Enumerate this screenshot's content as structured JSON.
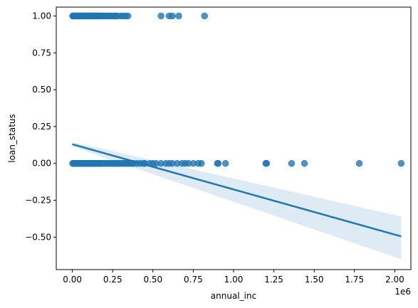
{
  "chart_data": {
    "type": "scatter",
    "xlabel": "annual_inc",
    "ylabel": "loan_status",
    "x_offset_label": "1e6",
    "x_tick_labels": [
      "0.00",
      "0.25",
      "0.50",
      "0.75",
      "1.00",
      "1.25",
      "1.50",
      "1.75",
      "2.00"
    ],
    "x_ticks": [
      0,
      0.25,
      0.5,
      0.75,
      1.0,
      1.25,
      1.5,
      1.75,
      2.0
    ],
    "y_tick_labels": [
      "1.00",
      "0.75",
      "0.50",
      "0.25",
      "0.00",
      "−0.25",
      "−0.50"
    ],
    "y_ticks": [
      1.0,
      0.75,
      0.5,
      0.25,
      0.0,
      -0.25,
      -0.5
    ],
    "xlim": [
      -0.1,
      2.1
    ],
    "ylim": [
      -0.72,
      1.06
    ],
    "grid": false,
    "color": "#1f77b4",
    "scatter_series": [
      {
        "y": 1,
        "x": [
          0.002,
          0.006,
          0.01,
          0.014,
          0.018,
          0.022,
          0.026,
          0.03,
          0.034,
          0.038,
          0.042,
          0.046,
          0.05,
          0.055,
          0.06,
          0.065,
          0.07,
          0.075,
          0.08,
          0.085,
          0.09,
          0.095,
          0.1,
          0.105,
          0.11,
          0.115,
          0.12,
          0.125,
          0.13,
          0.135,
          0.14,
          0.145,
          0.15,
          0.155,
          0.16,
          0.165,
          0.17,
          0.175,
          0.18,
          0.19,
          0.2,
          0.21,
          0.22,
          0.23,
          0.24,
          0.25,
          0.26,
          0.27,
          0.28,
          0.3,
          0.315,
          0.33,
          0.345,
          0.55,
          0.6,
          0.62,
          0.66,
          0.82
        ]
      },
      {
        "y": 0,
        "x": [
          0.002,
          0.006,
          0.01,
          0.014,
          0.018,
          0.022,
          0.026,
          0.03,
          0.034,
          0.038,
          0.042,
          0.046,
          0.05,
          0.055,
          0.06,
          0.065,
          0.07,
          0.075,
          0.08,
          0.085,
          0.09,
          0.095,
          0.1,
          0.105,
          0.11,
          0.115,
          0.12,
          0.125,
          0.13,
          0.135,
          0.14,
          0.145,
          0.15,
          0.155,
          0.16,
          0.165,
          0.17,
          0.175,
          0.18,
          0.185,
          0.19,
          0.2,
          0.21,
          0.22,
          0.23,
          0.24,
          0.25,
          0.26,
          0.27,
          0.28,
          0.29,
          0.3,
          0.31,
          0.32,
          0.33,
          0.34,
          0.35,
          0.36,
          0.37,
          0.38,
          0.4,
          0.42,
          0.44,
          0.45,
          0.48,
          0.5,
          0.52,
          0.55,
          0.58,
          0.6,
          0.62,
          0.65,
          0.68,
          0.7,
          0.72,
          0.75,
          0.78,
          0.8,
          0.9,
          0.905,
          0.95,
          1.2,
          1.205,
          1.36,
          1.44,
          1.78,
          2.04
        ]
      }
    ],
    "regression": {
      "x": [
        0,
        2.04
      ],
      "y": [
        0.13,
        -0.495
      ],
      "ci_lower": [
        0.115,
        -0.65
      ],
      "ci_upper": [
        0.145,
        -0.36
      ]
    }
  }
}
